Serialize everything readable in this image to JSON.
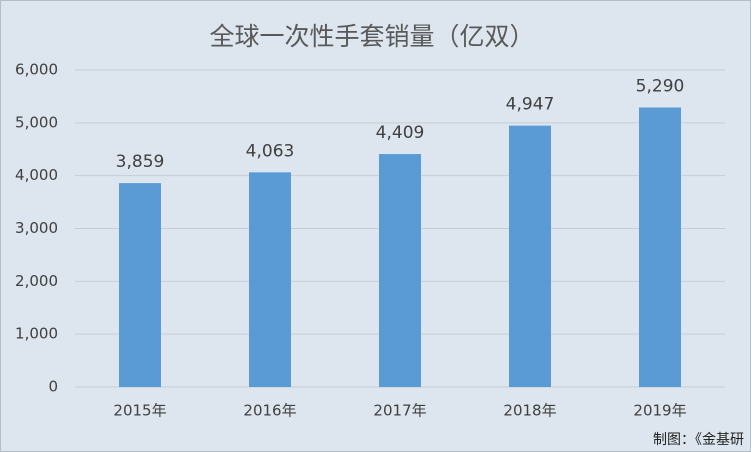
{
  "chart_data": {
    "type": "bar",
    "title": "全球一次性手套销量（亿双）",
    "categories": [
      "2015年",
      "2016年",
      "2017年",
      "2018年",
      "2019年"
    ],
    "values": [
      3859,
      4063,
      4409,
      4947,
      5290
    ],
    "value_labels": [
      "3,859",
      "4,063",
      "4,409",
      "4,947",
      "5,290"
    ],
    "color": "#5b9bd5",
    "ylim": [
      0,
      6000
    ],
    "yticks": [
      0,
      {
        "value": 1000,
        "label": "1,000"
      },
      {
        "value": 2000,
        "label": "2,000"
      },
      {
        "value": 3000,
        "label": "3,000"
      },
      {
        "value": 4000,
        "label": "4,000"
      },
      {
        "value": 5000,
        "label": "5,000"
      },
      {
        "value": 6000,
        "label": "6,000"
      }
    ],
    "grid": true,
    "source": "制图：《金基研"
  }
}
